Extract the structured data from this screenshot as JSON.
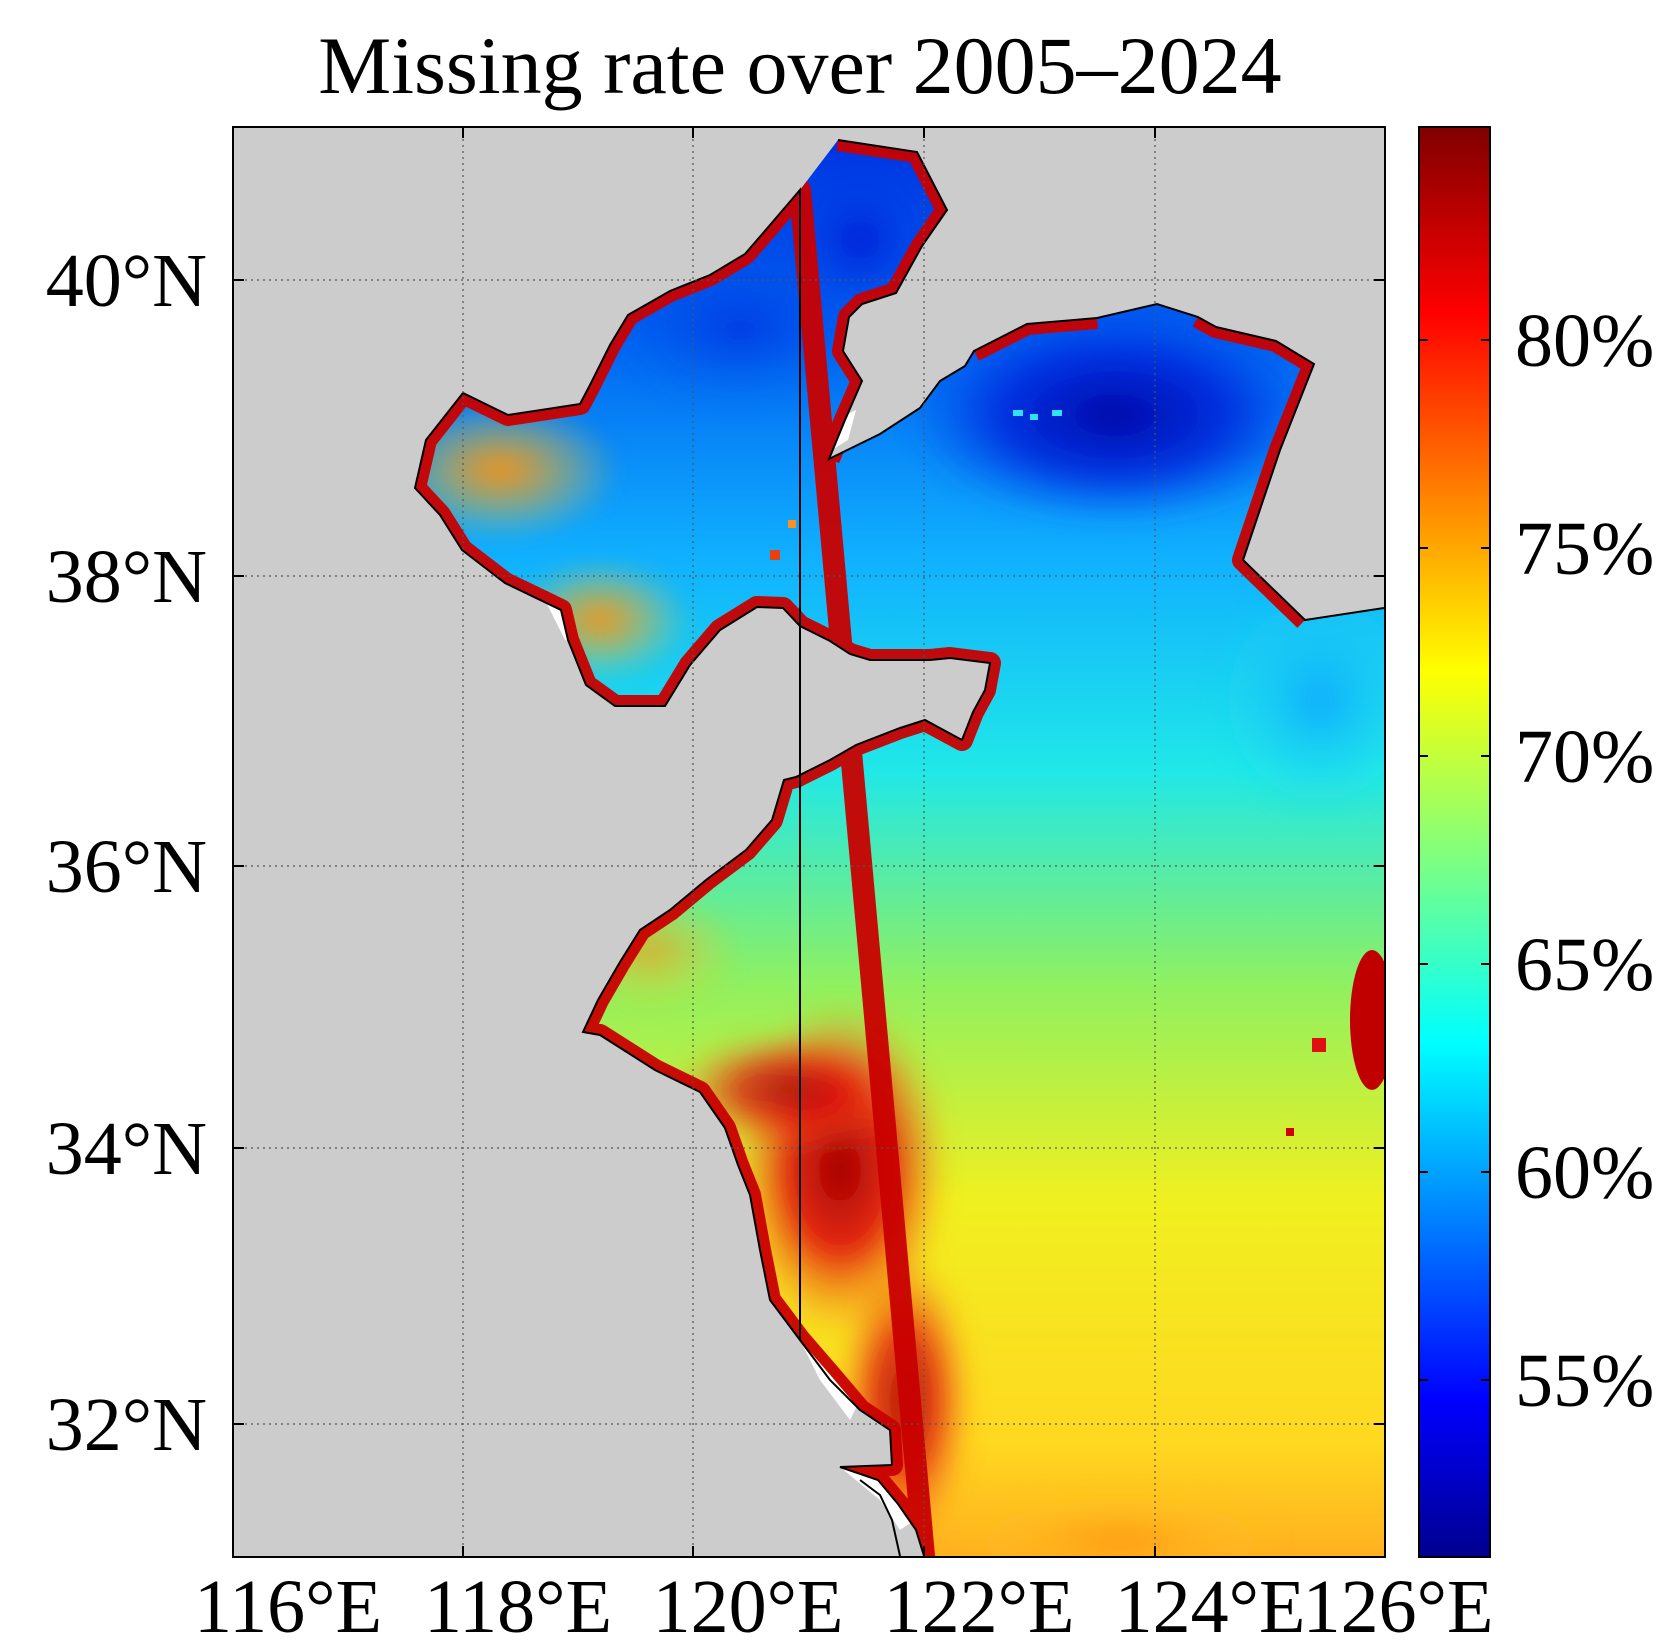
{
  "title": "Missing rate over 2005–2024",
  "map": {
    "longitude_ticks": [
      "116°E",
      "118°E",
      "120°E",
      "122°E",
      "124°E",
      "126°E"
    ],
    "latitude_ticks": [
      "40°N",
      "38°N",
      "36°N",
      "34°N",
      "32°N"
    ],
    "grid": "dotted",
    "land_color": "#cccccc",
    "no_data_color": "#ffffff"
  },
  "colorbar": {
    "colormap": "jet",
    "tick_labels": [
      "80%",
      "75%",
      "70%",
      "65%",
      "60%",
      "55%"
    ],
    "colors": [
      "#00008f",
      "#0000ff",
      "#00ffff",
      "#ffff00",
      "#ff0000",
      "#800000"
    ]
  }
}
